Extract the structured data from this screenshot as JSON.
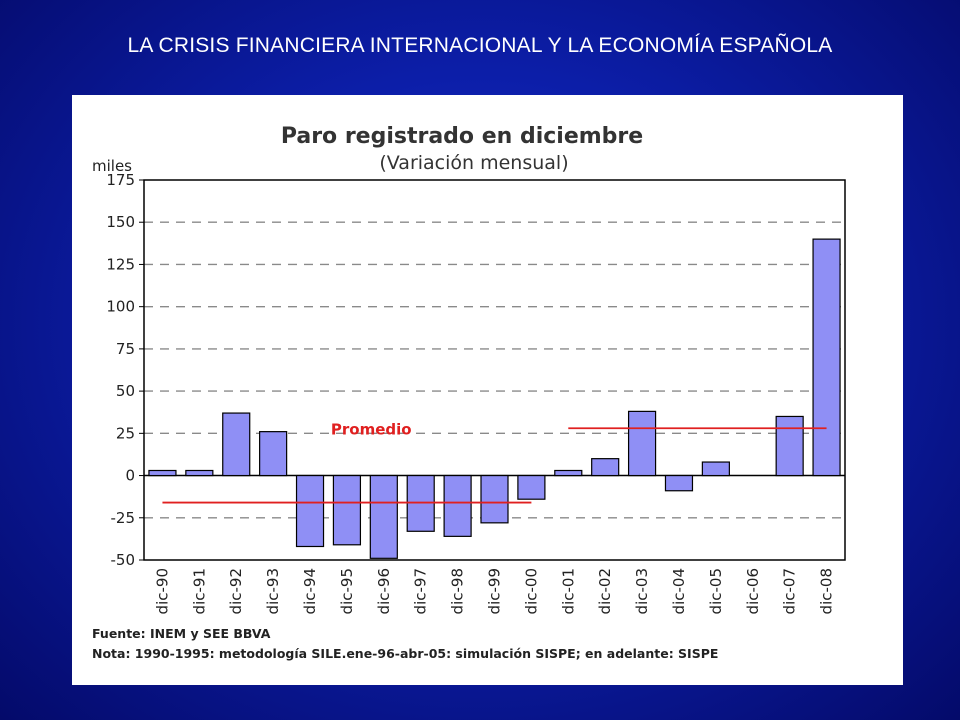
{
  "slide": {
    "title": "LA CRISIS FINANCIERA INTERNACIONAL  Y LA ECONOMÍA ESPAÑOLA"
  },
  "colors": {
    "background": "#0c1ea8",
    "bar_fill": "#8f8ff5",
    "bar_stroke": "#000000",
    "average_line": "#e02020"
  },
  "chart_data": {
    "type": "bar",
    "title": "Paro registrado en diciembre",
    "subtitle": "(Variación mensual)",
    "ylabel": "miles",
    "ylim": [
      -50,
      175
    ],
    "yticks": [
      175,
      150,
      125,
      100,
      75,
      50,
      25,
      0,
      -25,
      -50
    ],
    "ytick_labels": [
      "175",
      "150",
      "125",
      "100",
      "75",
      "50",
      "25",
      "0",
      "-25",
      "-50"
    ],
    "grid": "horizontal dashed",
    "categories": [
      "dic-90",
      "dic-91",
      "dic-92",
      "dic-93",
      "dic-94",
      "dic-95",
      "dic-96",
      "dic-97",
      "dic-98",
      "dic-99",
      "dic-00",
      "dic-01",
      "dic-02",
      "dic-03",
      "dic-04",
      "dic-05",
      "dic-06",
      "dic-07",
      "dic-08"
    ],
    "values": [
      3,
      3,
      37,
      26,
      -42,
      -41,
      -49,
      -33,
      -36,
      -28,
      -14,
      3,
      10,
      38,
      -9,
      8,
      0,
      35,
      140
    ],
    "averages": [
      {
        "from": "dic-90",
        "to": "dic-00",
        "value": -16
      },
      {
        "from": "dic-01",
        "to": "dic-08",
        "value": 28
      }
    ],
    "average_label": "Promedio",
    "source": "Fuente: INEM y SEE BBVA",
    "note": "Nota: 1990-1995: metodología SILE.ene-96-abr-05: simulación SISPE; en adelante: SISPE"
  }
}
